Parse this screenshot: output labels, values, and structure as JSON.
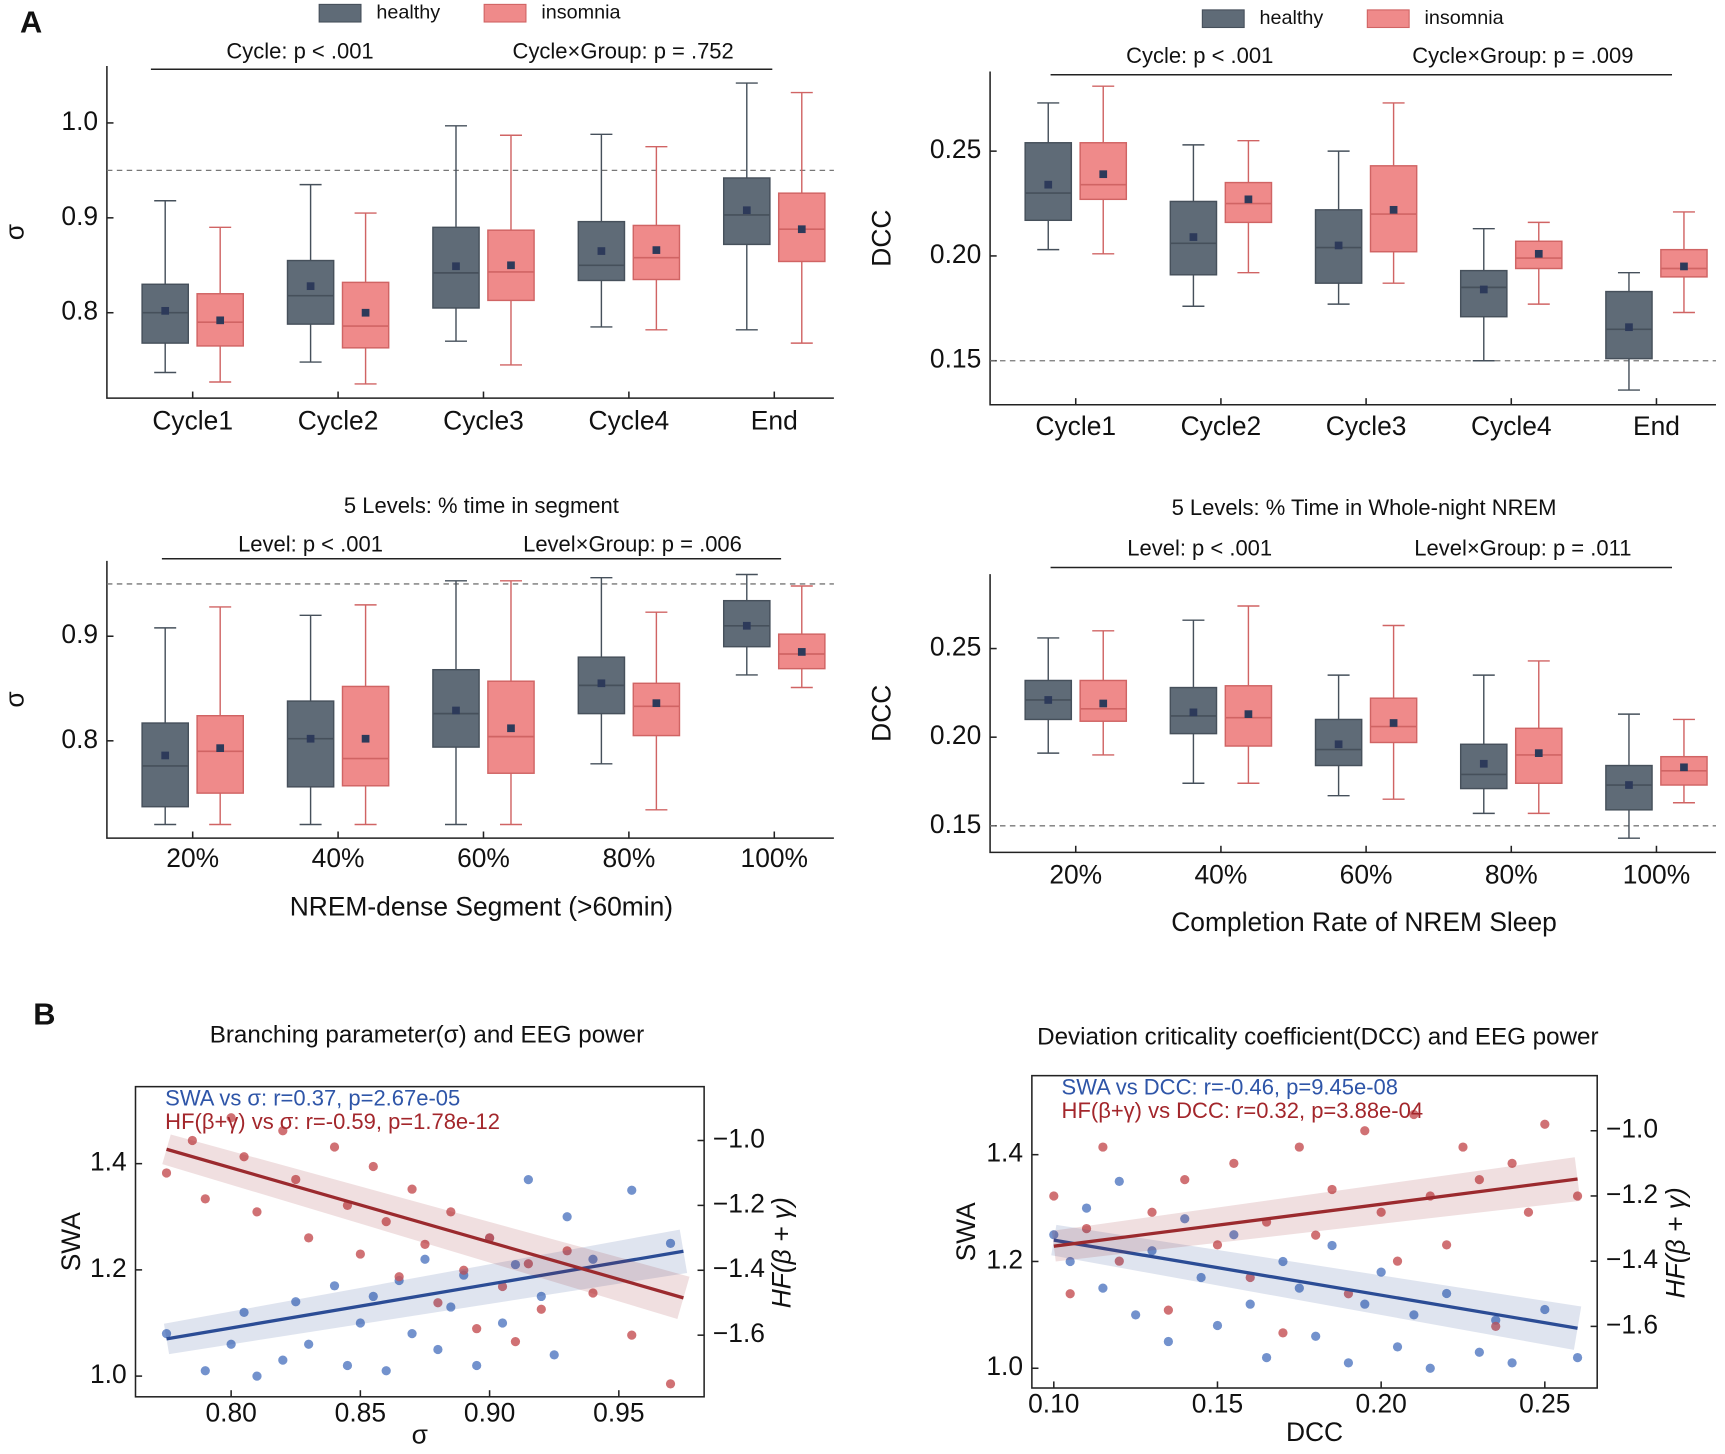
{
  "panel_labels": [
    "A",
    "B"
  ],
  "chart_data": [
    {
      "type": "box",
      "legend": true,
      "annotations": [
        "Cycle: p < .001",
        "Cycle×Group: p = .752"
      ],
      "ylabel": "σ",
      "categories": [
        "Cycle1",
        "Cycle2",
        "Cycle3",
        "Cycle4",
        "End"
      ],
      "ylim": [
        0.71,
        1.06
      ],
      "yticks": [
        0.8,
        0.9,
        {
          "value": 1,
          "label": "1.0"
        }
      ],
      "reference_line": 0.95,
      "series": [
        {
          "name": "healthy",
          "color": "#5f6b77",
          "whislo": [
            0.737,
            0.748,
            0.77,
            0.785,
            0.782
          ],
          "q1": [
            0.768,
            0.788,
            0.805,
            0.834,
            0.872
          ],
          "med": [
            0.8,
            0.818,
            0.842,
            0.85,
            0.903
          ],
          "q3": [
            0.83,
            0.855,
            0.89,
            0.896,
            0.942
          ],
          "whishi": [
            0.918,
            0.935,
            0.997,
            0.988,
            1.042
          ],
          "mean": [
            0.802,
            0.828,
            0.849,
            0.865,
            0.908
          ]
        },
        {
          "name": "insomnia",
          "color": "#ef8a8a",
          "whislo": [
            0.727,
            0.725,
            0.745,
            0.782,
            0.768
          ],
          "q1": [
            0.765,
            0.763,
            0.813,
            0.835,
            0.854
          ],
          "med": [
            0.79,
            0.786,
            0.843,
            0.858,
            0.888
          ],
          "q3": [
            0.82,
            0.832,
            0.887,
            0.892,
            0.926
          ],
          "whishi": [
            0.89,
            0.905,
            0.987,
            0.975,
            1.032
          ],
          "mean": [
            0.792,
            0.8,
            0.85,
            0.866,
            0.888
          ]
        }
      ]
    },
    {
      "type": "box",
      "legend": true,
      "annotations": [
        "Cycle: p < .001",
        "Cycle×Group: p = .009"
      ],
      "ylabel": "DCC",
      "categories": [
        "Cycle1",
        "Cycle2",
        "Cycle3",
        "Cycle4",
        "End"
      ],
      "ylim": [
        0.129,
        0.288
      ],
      "yticks": [
        0.15,
        {
          "value": 0.2,
          "label": "0.20"
        },
        0.25
      ],
      "reference_line": 0.15,
      "series": [
        {
          "name": "healthy",
          "color": "#5f6b77",
          "whislo": [
            0.203,
            0.176,
            0.177,
            0.15,
            0.136
          ],
          "q1": [
            0.217,
            0.191,
            0.187,
            0.171,
            0.151
          ],
          "med": [
            0.23,
            0.206,
            0.204,
            0.185,
            0.165
          ],
          "q3": [
            0.254,
            0.226,
            0.222,
            0.193,
            0.183
          ],
          "whishi": [
            0.273,
            0.253,
            0.25,
            0.213,
            0.192
          ],
          "mean": [
            0.234,
            0.209,
            0.205,
            0.184,
            0.166
          ]
        },
        {
          "name": "insomnia",
          "color": "#ef8a8a",
          "whislo": [
            0.201,
            0.192,
            0.187,
            0.177,
            0.173
          ],
          "q1": [
            0.227,
            0.216,
            0.202,
            0.194,
            0.19
          ],
          "med": [
            0.234,
            0.225,
            0.22,
            0.199,
            0.194
          ],
          "q3": [
            0.254,
            0.235,
            0.243,
            0.207,
            0.203
          ],
          "whishi": [
            0.281,
            0.255,
            0.273,
            0.216,
            0.221
          ],
          "mean": [
            0.239,
            0.227,
            0.222,
            0.201,
            0.195
          ]
        }
      ]
    },
    {
      "type": "box",
      "legend": false,
      "title": "5 Levels: % time in segment",
      "annotations": [
        "Level: p < .001",
        "Level×Group: p = .006"
      ],
      "ylabel": "σ",
      "xlabel": "NREM-dense Segment (>60min)",
      "categories": [
        "20%",
        "40%",
        "60%",
        "80%",
        "100%"
      ],
      "ylim": [
        0.707,
        0.972
      ],
      "yticks": [
        0.8,
        0.9
      ],
      "reference_line": 0.95,
      "series": [
        {
          "color": "#5f6b77",
          "whislo": [
            0.72,
            0.72,
            0.72,
            0.778,
            0.863
          ],
          "q1": [
            0.737,
            0.756,
            0.794,
            0.826,
            0.89
          ],
          "med": [
            0.776,
            0.802,
            0.826,
            0.853,
            0.91
          ],
          "q3": [
            0.817,
            0.838,
            0.868,
            0.88,
            0.934
          ],
          "whishi": [
            0.908,
            0.92,
            0.953,
            0.956,
            0.959
          ],
          "mean": [
            0.786,
            0.802,
            0.829,
            0.855,
            0.91
          ]
        },
        {
          "color": "#ef8a8a",
          "whislo": [
            0.72,
            0.72,
            0.72,
            0.734,
            0.851
          ],
          "q1": [
            0.75,
            0.757,
            0.769,
            0.805,
            0.869
          ],
          "med": [
            0.79,
            0.783,
            0.804,
            0.833,
            0.883
          ],
          "q3": [
            0.824,
            0.852,
            0.857,
            0.855,
            0.902
          ],
          "whishi": [
            0.928,
            0.93,
            0.953,
            0.923,
            0.948
          ],
          "mean": [
            0.793,
            0.802,
            0.812,
            0.836,
            0.885
          ]
        }
      ]
    },
    {
      "type": "box",
      "legend": false,
      "title": "5 Levels: % Time in Whole-night NREM",
      "annotations": [
        "Level: p < .001",
        "Level×Group: p = .011"
      ],
      "ylabel": "DCC",
      "xlabel": "Completion Rate of NREM Sleep",
      "categories": [
        "20%",
        "40%",
        "60%",
        "80%",
        "100%"
      ],
      "ylim": [
        0.135,
        0.292
      ],
      "yticks": [
        0.15,
        {
          "value": 0.2,
          "label": "0.20"
        },
        0.25
      ],
      "reference_line": 0.15,
      "series": [
        {
          "color": "#5f6b77",
          "whislo": [
            0.191,
            0.174,
            0.167,
            0.157,
            0.143
          ],
          "q1": [
            0.21,
            0.202,
            0.184,
            0.171,
            0.159
          ],
          "med": [
            0.221,
            0.212,
            0.193,
            0.179,
            0.173
          ],
          "q3": [
            0.232,
            0.228,
            0.21,
            0.196,
            0.184
          ],
          "whishi": [
            0.256,
            0.266,
            0.235,
            0.235,
            0.213
          ],
          "mean": [
            0.221,
            0.214,
            0.196,
            0.185,
            0.173
          ]
        },
        {
          "color": "#ef8a8a",
          "whislo": [
            0.19,
            0.174,
            0.165,
            0.157,
            0.163
          ],
          "q1": [
            0.209,
            0.195,
            0.197,
            0.174,
            0.173
          ],
          "med": [
            0.216,
            0.211,
            0.206,
            0.19,
            0.181
          ],
          "q3": [
            0.232,
            0.229,
            0.222,
            0.205,
            0.189
          ],
          "whishi": [
            0.26,
            0.274,
            0.263,
            0.243,
            0.21
          ],
          "mean": [
            0.219,
            0.213,
            0.208,
            0.191,
            0.183
          ]
        }
      ]
    },
    {
      "type": "scatter",
      "title": "Branching parameter(σ) and EEG power",
      "annotations": [
        {
          "text": "SWA vs σ: r=0.37, p=2.67e-05",
          "color": "#2e55a8"
        },
        {
          "text": "HF(β+γ) vs σ: r=-0.59, p=1.78e-12",
          "color": "#a3262b"
        }
      ],
      "xlabel": "σ",
      "ylabel": "SWA",
      "y2label": "HF(β + γ)",
      "xlim": [
        0.763,
        0.983
      ],
      "xticks": [
        {
          "value": 0.8,
          "label": "0.80"
        },
        0.85,
        {
          "value": 0.9,
          "label": "0.90"
        },
        0.95
      ],
      "ylim": [
        0.961,
        1.545
      ],
      "yticks": [
        {
          "value": 1,
          "label": "1.0"
        },
        1.2,
        1.4
      ],
      "y2lim": [
        -1.79,
        -0.834
      ],
      "y2ticks": [
        {
          "value": -1.6,
          "label": "−1.6"
        },
        {
          "value": -1.4,
          "label": "−1.4"
        },
        {
          "value": -1.2,
          "label": "−1.2"
        },
        {
          "value": -1,
          "label": "−1.0"
        }
      ],
      "series": [
        {
          "color": "#5b7fc4",
          "x": [
            0.775,
            0.79,
            0.8,
            0.805,
            0.81,
            0.82,
            0.825,
            0.83,
            0.84,
            0.845,
            0.85,
            0.855,
            0.86,
            0.865,
            0.87,
            0.875,
            0.88,
            0.885,
            0.89,
            0.895,
            0.9,
            0.905,
            0.91,
            0.915,
            0.92,
            0.925,
            0.93,
            0.94,
            0.955,
            0.97
          ],
          "values": [
            1.08,
            1.01,
            1.06,
            1.12,
            1.0,
            1.03,
            1.14,
            1.06,
            1.17,
            1.02,
            1.1,
            1.15,
            1.01,
            1.18,
            1.08,
            1.22,
            1.05,
            1.13,
            1.19,
            1.02,
            1.26,
            1.1,
            1.21,
            1.37,
            1.15,
            1.04,
            1.3,
            1.22,
            1.35,
            1.25
          ]
        },
        {
          "color": "#c8585c",
          "axis": "y2",
          "x": [
            0.775,
            0.785,
            0.79,
            0.8,
            0.805,
            0.81,
            0.82,
            0.825,
            0.83,
            0.84,
            0.845,
            0.85,
            0.855,
            0.86,
            0.865,
            0.87,
            0.875,
            0.88,
            0.885,
            0.89,
            0.895,
            0.9,
            0.905,
            0.91,
            0.915,
            0.92,
            0.93,
            0.94,
            0.955,
            0.97
          ],
          "values": [
            -1.1,
            -1.0,
            -1.18,
            -0.93,
            -1.05,
            -1.22,
            -0.97,
            -1.12,
            -1.3,
            -1.02,
            -1.2,
            -1.35,
            -1.08,
            -1.25,
            -1.42,
            -1.15,
            -1.32,
            -1.5,
            -1.22,
            -1.4,
            -1.58,
            -1.3,
            -1.45,
            -1.62,
            -1.38,
            -1.52,
            -1.34,
            -1.47,
            -1.6,
            -1.75
          ]
        }
      ],
      "fits": [
        {
          "color": "#2b4c95",
          "x": [
            0.775,
            0.975
          ],
          "values": [
            1.07,
            1.235
          ]
        },
        {
          "color": "#9b2a2e",
          "axis": "y2",
          "x": [
            0.775,
            0.975
          ],
          "values": [
            -1.027,
            -1.485
          ]
        }
      ]
    },
    {
      "type": "scatter",
      "title": "Deviation criticality coefficient(DCC) and EEG power",
      "annotations": [
        {
          "text": "SWA vs DCC: r=-0.46, p=9.45e-08",
          "color": "#2e55a8"
        },
        {
          "text": "HF(β+γ) vs DCC: r=0.32, p=3.88e-04",
          "color": "#a3262b"
        }
      ],
      "xlabel": "DCC",
      "ylabel": "SWA",
      "y2label": "HF(β + γ)",
      "xlim": [
        0.0933,
        0.266
      ],
      "xticks": [
        {
          "value": 0.1,
          "label": "0.10"
        },
        0.15,
        {
          "value": 0.2,
          "label": "0.20"
        },
        0.25
      ],
      "ylim": [
        0.963,
        1.548
      ],
      "yticks": [
        {
          "value": 1,
          "label": "1.0"
        },
        1.2,
        1.4
      ],
      "y2lim": [
        -1.789,
        -0.831
      ],
      "y2ticks": [
        {
          "value": -1.6,
          "label": "−1.6"
        },
        {
          "value": -1.4,
          "label": "−1.4"
        },
        {
          "value": -1.2,
          "label": "−1.2"
        },
        {
          "value": -1,
          "label": "−1.0"
        }
      ],
      "series": [
        {
          "color": "#5b7fc4",
          "x": [
            0.1,
            0.105,
            0.11,
            0.115,
            0.12,
            0.125,
            0.13,
            0.135,
            0.14,
            0.145,
            0.15,
            0.155,
            0.16,
            0.165,
            0.17,
            0.175,
            0.18,
            0.185,
            0.19,
            0.195,
            0.2,
            0.205,
            0.21,
            0.215,
            0.22,
            0.23,
            0.235,
            0.24,
            0.25,
            0.26
          ],
          "values": [
            1.25,
            1.2,
            1.3,
            1.15,
            1.35,
            1.1,
            1.22,
            1.05,
            1.28,
            1.17,
            1.08,
            1.25,
            1.12,
            1.02,
            1.2,
            1.15,
            1.06,
            1.23,
            1.01,
            1.12,
            1.18,
            1.04,
            1.1,
            1.0,
            1.14,
            1.03,
            1.09,
            1.01,
            1.11,
            1.02
          ]
        },
        {
          "color": "#c8585c",
          "axis": "y2",
          "x": [
            0.1,
            0.105,
            0.11,
            0.115,
            0.12,
            0.13,
            0.135,
            0.14,
            0.15,
            0.155,
            0.16,
            0.165,
            0.17,
            0.175,
            0.18,
            0.185,
            0.19,
            0.195,
            0.2,
            0.205,
            0.21,
            0.215,
            0.22,
            0.225,
            0.23,
            0.235,
            0.24,
            0.245,
            0.25,
            0.26
          ],
          "values": [
            -1.2,
            -1.5,
            -1.3,
            -1.05,
            -1.4,
            -1.25,
            -1.55,
            -1.15,
            -1.35,
            -1.1,
            -1.45,
            -1.28,
            -1.62,
            -1.05,
            -1.32,
            -1.18,
            -1.5,
            -1.0,
            -1.25,
            -1.4,
            -0.95,
            -1.2,
            -1.35,
            -1.05,
            -1.15,
            -1.6,
            -1.1,
            -1.25,
            -0.98,
            -1.2
          ]
        }
      ],
      "fits": [
        {
          "color": "#2b4c95",
          "x": [
            0.1,
            0.26
          ],
          "values": [
            1.24,
            1.075
          ]
        },
        {
          "color": "#9b2a2e",
          "axis": "y2",
          "x": [
            0.1,
            0.26
          ],
          "values": [
            -1.354,
            -1.148
          ]
        }
      ]
    }
  ]
}
